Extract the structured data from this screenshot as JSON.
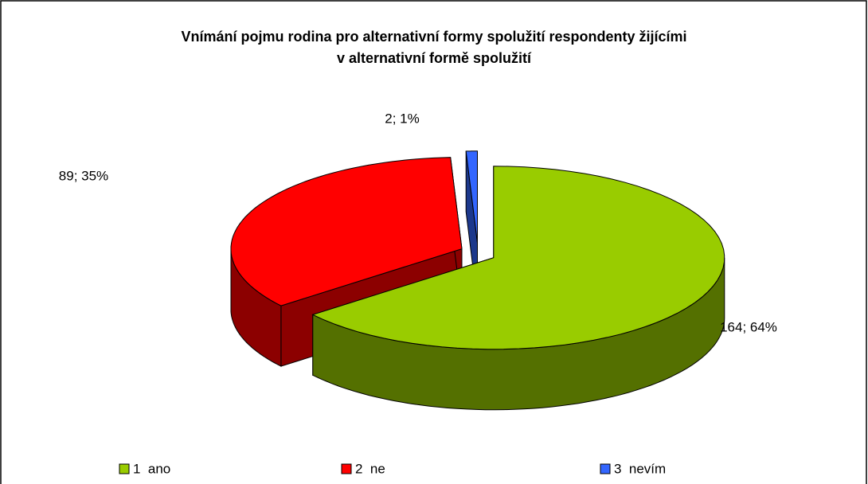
{
  "chart_data": {
    "type": "pie3d",
    "title": "Vnímání pojmu rodina pro alternativní formy spolužití respondenty žijícími\nv alternativní formě spolužití",
    "categories": [
      "1  ano",
      "2  ne",
      "3  nevím"
    ],
    "values": [
      164,
      89,
      2
    ],
    "value_labels": [
      "164; 64%",
      "89; 35%",
      "2; 1%"
    ],
    "colors": [
      "#99cc00",
      "#ff0000",
      "#3366ff"
    ],
    "legend": "bottom"
  }
}
